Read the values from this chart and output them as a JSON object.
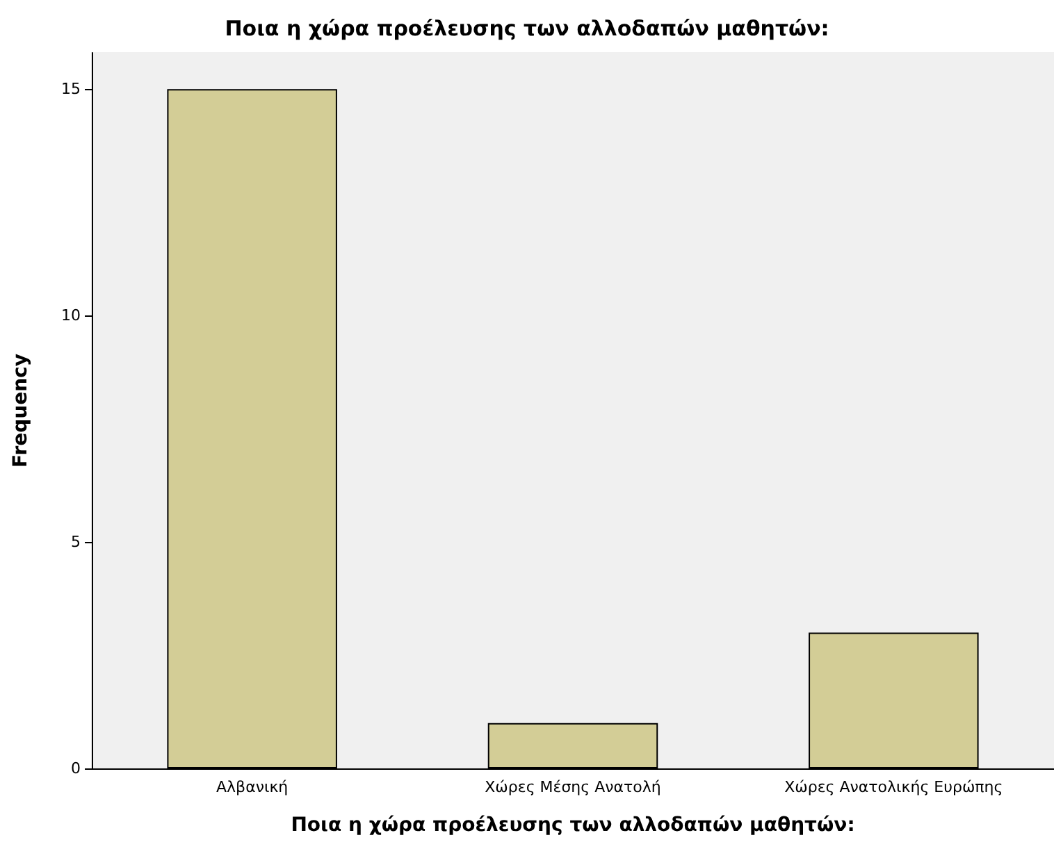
{
  "chart_data": {
    "type": "bar",
    "title": "Ποια η χώρα προέλευσης των αλλοδαπών μαθητών:",
    "xlabel": "Ποια η χώρα προέλευσης των αλλοδαπών μαθητών:",
    "ylabel": "Frequency",
    "categories": [
      "Αλβανική",
      "Χώρες Μέσης Ανατολή",
      "Χώρες Ανατολικής Ευρώπης"
    ],
    "values": [
      15,
      1,
      3
    ],
    "color": "#d3cd96",
    "ylim": [
      0,
      15.8
    ],
    "yticks": [
      0,
      5,
      10,
      15
    ],
    "grid": false
  }
}
